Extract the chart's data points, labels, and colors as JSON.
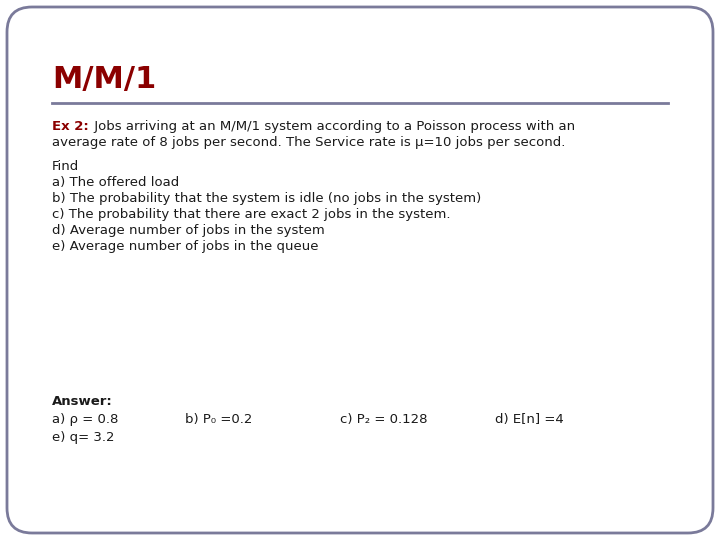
{
  "title": "M/M/1",
  "title_color": "#8B0000",
  "title_fontsize": 22,
  "separator_color": "#7A7A9A",
  "background_color": "#FFFFFF",
  "border_color": "#7A7A9A",
  "ex_label": "Ex 2:",
  "ex_label_color": "#8B0000",
  "ex_line1": " Jobs arriving at an M/M/1 system according to a Poisson process with an",
  "ex_line2": "average rate of 8 jobs per second. The Service rate is μ=10 jobs per second.",
  "find_text": "Find",
  "items": [
    "a) The offered load",
    "b) The probability that the system is idle (no jobs in the system)",
    "c) The probability that there are exact 2 jobs in the system.",
    "d) Average number of jobs in the system",
    "e) Average number of jobs in the queue"
  ],
  "answer_label": "Answer:",
  "answer_line1": [
    "a) ρ = 0.8",
    "b) P₀ =0.2",
    "c) P₂ = 0.128",
    "d) E[n] =4"
  ],
  "answer_line2": "e) q= 3.2",
  "text_color": "#1a1a1a",
  "text_fontsize": 9.5,
  "answer_fontsize": 9.5
}
